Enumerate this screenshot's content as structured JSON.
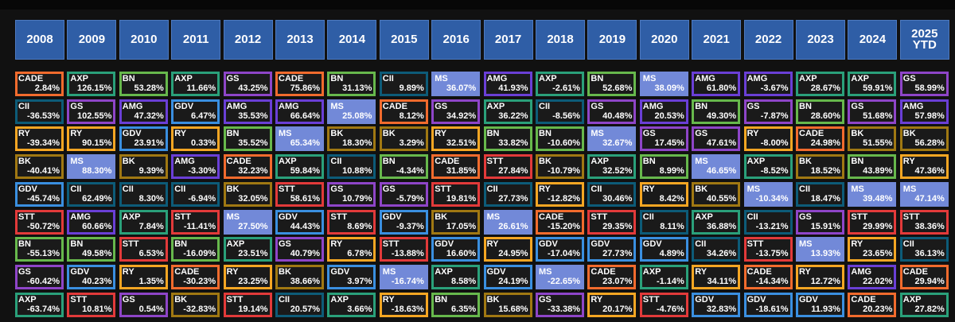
{
  "chart_data": {
    "type": "table",
    "columns": [
      "2008",
      "2009",
      "2010",
      "2011",
      "2012",
      "2013",
      "2014",
      "2015",
      "2016",
      "2017",
      "2018",
      "2019",
      "2020",
      "2021",
      "2022",
      "2023",
      "2024",
      "2025\nYTD"
    ],
    "highlight_ticker": "MS",
    "ticker_colors": {
      "CADE": "#f26b2d",
      "AXP": "#2aa07a",
      "BN": "#67b84c",
      "GS": "#8e45c8",
      "CII": "#0d5b78",
      "MS": "#7289d8",
      "RY": "#f5a623",
      "BK": "#a07812",
      "GDV": "#3a8fe0",
      "STT": "#e23a3a",
      "AMG": "#6a3fd6"
    },
    "rows": [
      [
        [
          "CADE",
          "2.84%"
        ],
        [
          "AXP",
          "126.15%"
        ],
        [
          "BN",
          "53.28%"
        ],
        [
          "AXP",
          "11.66%"
        ],
        [
          "GS",
          "43.25%"
        ],
        [
          "CADE",
          "75.86%"
        ],
        [
          "BN",
          "31.13%"
        ],
        [
          "CII",
          "9.89%"
        ],
        [
          "MS",
          "36.07%"
        ],
        [
          "AMG",
          "41.93%"
        ],
        [
          "AXP",
          "-2.61%"
        ],
        [
          "BN",
          "52.68%"
        ],
        [
          "MS",
          "38.09%"
        ],
        [
          "AMG",
          "61.80%"
        ],
        [
          "AMG",
          "-3.67%"
        ],
        [
          "AXP",
          "28.67%"
        ],
        [
          "AXP",
          "59.91%"
        ],
        [
          "GS",
          "58.99%"
        ]
      ],
      [
        [
          "CII",
          "-36.53%"
        ],
        [
          "GS",
          "102.55%"
        ],
        [
          "AMG",
          "47.32%"
        ],
        [
          "GDV",
          "6.47%"
        ],
        [
          "AMG",
          "35.53%"
        ],
        [
          "AMG",
          "66.64%"
        ],
        [
          "MS",
          "25.08%"
        ],
        [
          "CADE",
          "8.12%"
        ],
        [
          "GS",
          "34.92%"
        ],
        [
          "AXP",
          "36.22%"
        ],
        [
          "CII",
          "-8.56%"
        ],
        [
          "GS",
          "40.48%"
        ],
        [
          "AMG",
          "20.53%"
        ],
        [
          "BN",
          "49.30%"
        ],
        [
          "GS",
          "-7.87%"
        ],
        [
          "BN",
          "28.60%"
        ],
        [
          "GS",
          "51.68%"
        ],
        [
          "AMG",
          "57.98%"
        ]
      ],
      [
        [
          "RY",
          "-39.34%"
        ],
        [
          "RY",
          "90.15%"
        ],
        [
          "GDV",
          "23.91%"
        ],
        [
          "RY",
          "0.33%"
        ],
        [
          "BN",
          "35.52%"
        ],
        [
          "MS",
          "65.34%"
        ],
        [
          "BK",
          "18.30%"
        ],
        [
          "BK",
          "3.29%"
        ],
        [
          "RY",
          "32.51%"
        ],
        [
          "BN",
          "33.82%"
        ],
        [
          "BN",
          "-10.60%"
        ],
        [
          "MS",
          "32.67%"
        ],
        [
          "GS",
          "17.45%"
        ],
        [
          "GS",
          "47.61%"
        ],
        [
          "RY",
          "-8.00%"
        ],
        [
          "CADE",
          "24.98%"
        ],
        [
          "BK",
          "51.55%"
        ],
        [
          "BK",
          "56.28%"
        ]
      ],
      [
        [
          "BK",
          "-40.41%"
        ],
        [
          "MS",
          "88.30%"
        ],
        [
          "BK",
          "9.39%"
        ],
        [
          "AMG",
          "-3.30%"
        ],
        [
          "CADE",
          "32.23%"
        ],
        [
          "AXP",
          "59.84%"
        ],
        [
          "CII",
          "10.88%"
        ],
        [
          "BN",
          "-4.34%"
        ],
        [
          "CADE",
          "31.85%"
        ],
        [
          "STT",
          "27.84%"
        ],
        [
          "BK",
          "-10.79%"
        ],
        [
          "AXP",
          "32.52%"
        ],
        [
          "BN",
          "8.99%"
        ],
        [
          "MS",
          "46.65%"
        ],
        [
          "AXP",
          "-8.52%"
        ],
        [
          "BK",
          "18.52%"
        ],
        [
          "BN",
          "43.89%"
        ],
        [
          "RY",
          "47.36%"
        ]
      ],
      [
        [
          "GDV",
          "-45.74%"
        ],
        [
          "CII",
          "62.49%"
        ],
        [
          "CII",
          "8.30%"
        ],
        [
          "CII",
          "-6.94%"
        ],
        [
          "BK",
          "32.05%"
        ],
        [
          "STT",
          "58.61%"
        ],
        [
          "GS",
          "10.79%"
        ],
        [
          "GS",
          "-5.79%"
        ],
        [
          "STT",
          "19.81%"
        ],
        [
          "CII",
          "27.73%"
        ],
        [
          "RY",
          "-12.82%"
        ],
        [
          "CII",
          "30.46%"
        ],
        [
          "RY",
          "8.42%"
        ],
        [
          "BK",
          "40.55%"
        ],
        [
          "MS",
          "-10.34%"
        ],
        [
          "CII",
          "18.47%"
        ],
        [
          "MS",
          "39.48%"
        ],
        [
          "MS",
          "47.14%"
        ]
      ],
      [
        [
          "STT",
          "-50.72%"
        ],
        [
          "AMG",
          "60.66%"
        ],
        [
          "AXP",
          "7.84%"
        ],
        [
          "STT",
          "-11.41%"
        ],
        [
          "MS",
          "27.50%"
        ],
        [
          "GDV",
          "44.43%"
        ],
        [
          "STT",
          "8.69%"
        ],
        [
          "GDV",
          "-9.37%"
        ],
        [
          "BK",
          "17.05%"
        ],
        [
          "MS",
          "26.61%"
        ],
        [
          "CADE",
          "-15.20%"
        ],
        [
          "STT",
          "29.35%"
        ],
        [
          "CII",
          "8.11%"
        ],
        [
          "AXP",
          "36.88%"
        ],
        [
          "CII",
          "-13.21%"
        ],
        [
          "GS",
          "15.91%"
        ],
        [
          "STT",
          "29.99%"
        ],
        [
          "STT",
          "38.36%"
        ]
      ],
      [
        [
          "BN",
          "-55.13%"
        ],
        [
          "BN",
          "49.58%"
        ],
        [
          "STT",
          "6.53%"
        ],
        [
          "BN",
          "-16.09%"
        ],
        [
          "AXP",
          "23.51%"
        ],
        [
          "GS",
          "40.79%"
        ],
        [
          "RY",
          "6.78%"
        ],
        [
          "STT",
          "-13.88%"
        ],
        [
          "GDV",
          "16.60%"
        ],
        [
          "RY",
          "24.95%"
        ],
        [
          "GDV",
          "-17.04%"
        ],
        [
          "GDV",
          "27.73%"
        ],
        [
          "GDV",
          "4.89%"
        ],
        [
          "CII",
          "34.26%"
        ],
        [
          "STT",
          "-13.75%"
        ],
        [
          "MS",
          "13.93%"
        ],
        [
          "RY",
          "23.65%"
        ],
        [
          "CII",
          "36.13%"
        ]
      ],
      [
        [
          "GS",
          "-60.42%"
        ],
        [
          "GDV",
          "40.23%"
        ],
        [
          "RY",
          "1.35%"
        ],
        [
          "CADE",
          "-30.23%"
        ],
        [
          "RY",
          "23.25%"
        ],
        [
          "BK",
          "38.66%"
        ],
        [
          "GDV",
          "3.97%"
        ],
        [
          "MS",
          "-16.74%"
        ],
        [
          "AXP",
          "8.58%"
        ],
        [
          "GDV",
          "24.19%"
        ],
        [
          "MS",
          "-22.65%"
        ],
        [
          "CADE",
          "23.07%"
        ],
        [
          "AXP",
          "-1.14%"
        ],
        [
          "RY",
          "34.11%"
        ],
        [
          "CADE",
          "-14.34%"
        ],
        [
          "RY",
          "12.72%"
        ],
        [
          "AMG",
          "22.02%"
        ],
        [
          "CADE",
          "29.94%"
        ]
      ],
      [
        [
          "AXP",
          "-63.74%"
        ],
        [
          "STT",
          "10.81%"
        ],
        [
          "GS",
          "0.54%"
        ],
        [
          "BK",
          "-32.83%"
        ],
        [
          "STT",
          "19.14%"
        ],
        [
          "CII",
          "20.57%"
        ],
        [
          "AXP",
          "3.66%"
        ],
        [
          "RY",
          "-18.63%"
        ],
        [
          "BN",
          "6.35%"
        ],
        [
          "BK",
          "15.68%"
        ],
        [
          "GS",
          "-33.38%"
        ],
        [
          "RY",
          "20.17%"
        ],
        [
          "STT",
          "-4.76%"
        ],
        [
          "GDV",
          "32.83%"
        ],
        [
          "GDV",
          "-18.61%"
        ],
        [
          "GDV",
          "11.93%"
        ],
        [
          "CADE",
          "20.23%"
        ],
        [
          "AXP",
          "27.82%"
        ]
      ]
    ]
  }
}
